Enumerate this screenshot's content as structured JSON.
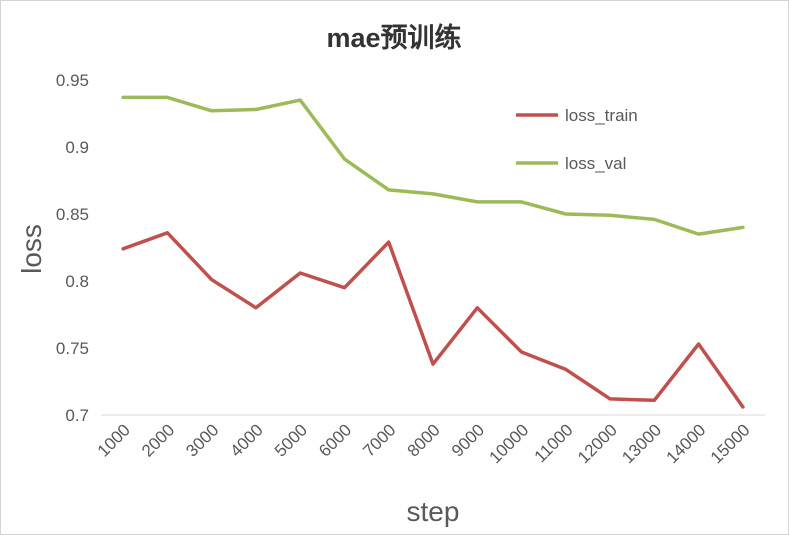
{
  "chart_data": {
    "type": "line",
    "title": "mae预训练",
    "xlabel": "step",
    "ylabel": "loss",
    "categories": [
      "1000",
      "2000",
      "3000",
      "4000",
      "5000",
      "6000",
      "7000",
      "8000",
      "9000",
      "10000",
      "11000",
      "12000",
      "13000",
      "14000",
      "15000"
    ],
    "y_ticks": [
      "0.95",
      "0.9",
      "0.85",
      "0.8",
      "0.75",
      "0.7"
    ],
    "ylim": [
      0.7,
      0.95
    ],
    "grid": false,
    "legend_position": "top-right",
    "series": [
      {
        "name": "loss_train",
        "color": "#c0504d",
        "values": [
          0.824,
          0.836,
          0.801,
          0.78,
          0.806,
          0.795,
          0.829,
          0.738,
          0.78,
          0.747,
          0.734,
          0.712,
          0.711,
          0.753,
          0.706
        ]
      },
      {
        "name": "loss_val",
        "color": "#9bbb59",
        "values": [
          0.937,
          0.937,
          0.927,
          0.928,
          0.935,
          0.891,
          0.868,
          0.865,
          0.859,
          0.859,
          0.85,
          0.849,
          0.846,
          0.835,
          0.84
        ]
      }
    ],
    "axis_color": "#d9d9d9"
  }
}
